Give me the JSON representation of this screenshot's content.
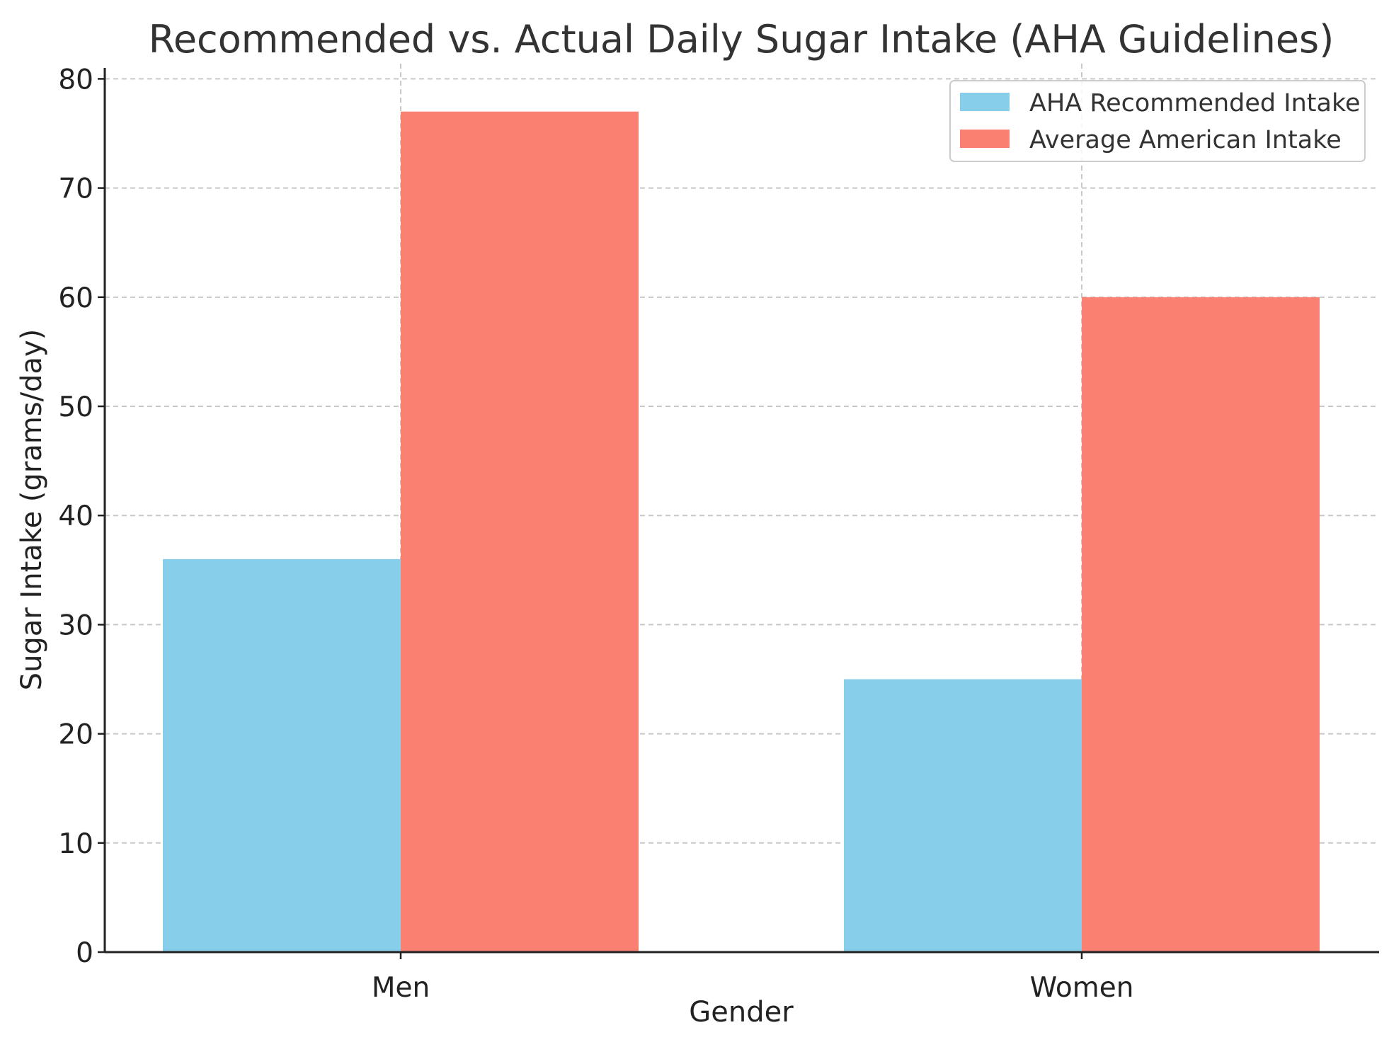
{
  "chart_data": {
    "type": "bar",
    "title": "Recommended vs. Actual Daily Sugar Intake (AHA Guidelines)",
    "xlabel": "Gender",
    "ylabel": "Sugar Intake (grams/day)",
    "categories": [
      "Men",
      "Women"
    ],
    "ylim": [
      0,
      81
    ],
    "yticks": [
      0,
      10,
      20,
      30,
      40,
      50,
      60,
      70,
      80
    ],
    "grid": true,
    "legend_position": "top-right",
    "series": [
      {
        "name": "AHA Recommended Intake",
        "color": "#87CEEB",
        "values": [
          36,
          25
        ]
      },
      {
        "name": "Average American Intake",
        "color": "#FA8072",
        "values": [
          77,
          60
        ]
      }
    ]
  }
}
